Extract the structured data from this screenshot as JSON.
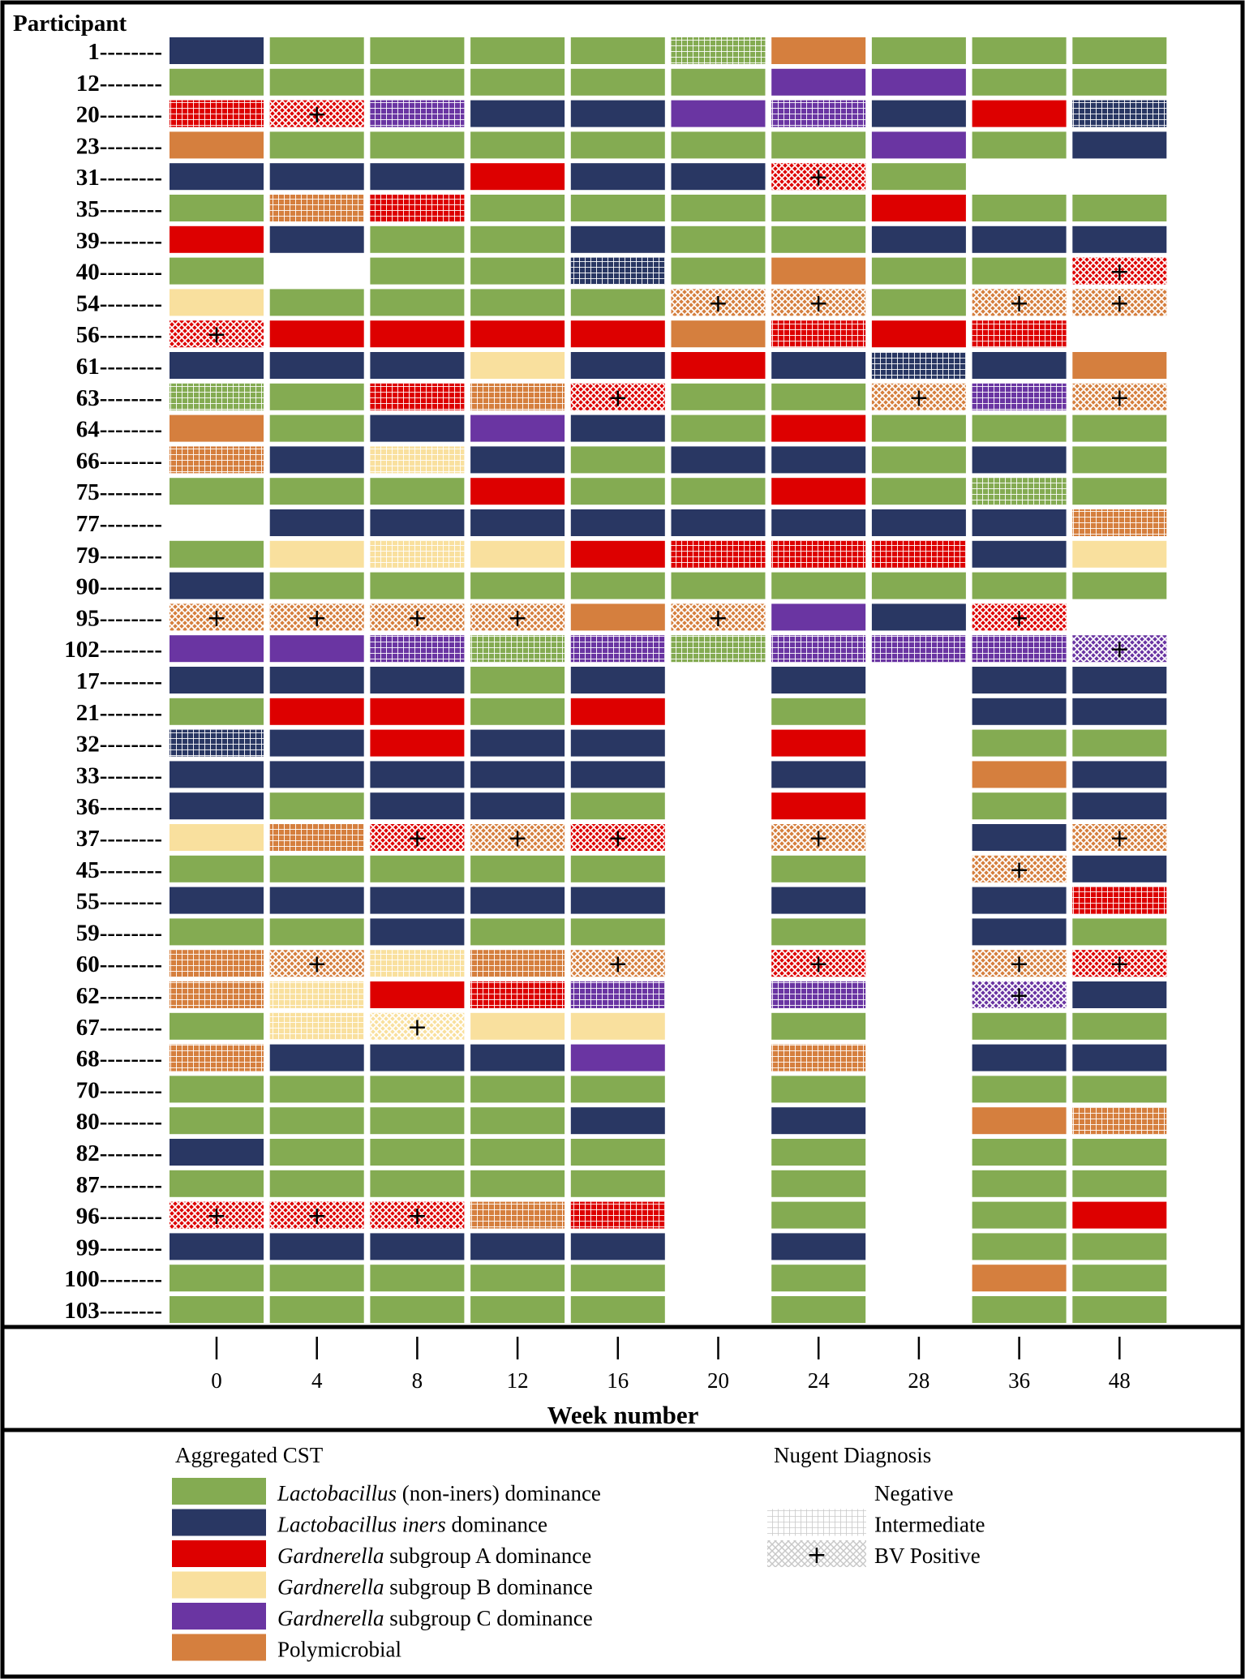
{
  "chart_data": {
    "type": "heatmap",
    "row_header": "Participant",
    "xlabel": "Week number",
    "weeks": [
      "0",
      "4",
      "8",
      "12",
      "16",
      "20",
      "24",
      "28",
      "36",
      "48"
    ],
    "colors": {
      "G": "#84ab52",
      "N": "#293763",
      "R": "#dd0000",
      "Y": "#f9e09e",
      "P": "#6a35a2",
      "O": "#d57f3e"
    },
    "rows": [
      {
        "id": "1",
        "cells": [
          "N",
          "G",
          "G",
          "G",
          "G",
          "Gi",
          "O",
          "G",
          "G",
          "G"
        ]
      },
      {
        "id": "12",
        "cells": [
          "G",
          "G",
          "G",
          "G",
          "G",
          "G",
          "P",
          "P",
          "G",
          "G"
        ]
      },
      {
        "id": "20",
        "cells": [
          "Ri",
          "Rb",
          "Pi",
          "N",
          "N",
          "P",
          "Pi",
          "N",
          "R",
          "Ni"
        ]
      },
      {
        "id": "23",
        "cells": [
          "O",
          "G",
          "G",
          "G",
          "G",
          "G",
          "G",
          "P",
          "G",
          "N"
        ]
      },
      {
        "id": "31",
        "cells": [
          "N",
          "N",
          "N",
          "R",
          "N",
          "N",
          "Rb",
          "G",
          "",
          ""
        ]
      },
      {
        "id": "35",
        "cells": [
          "G",
          "Oi",
          "Ri",
          "G",
          "G",
          "G",
          "G",
          "R",
          "G",
          "G"
        ]
      },
      {
        "id": "39",
        "cells": [
          "R",
          "N",
          "G",
          "G",
          "N",
          "G",
          "G",
          "N",
          "N",
          "N"
        ]
      },
      {
        "id": "40",
        "cells": [
          "G",
          "",
          "G",
          "G",
          "Ni",
          "G",
          "O",
          "G",
          "G",
          "Rb"
        ]
      },
      {
        "id": "54",
        "cells": [
          "Y",
          "G",
          "G",
          "G",
          "G",
          "Ob",
          "Ob",
          "G",
          "Ob",
          "Ob"
        ]
      },
      {
        "id": "56",
        "cells": [
          "Rb",
          "R",
          "R",
          "R",
          "R",
          "O",
          "Ri",
          "R",
          "Ri",
          ""
        ]
      },
      {
        "id": "61",
        "cells": [
          "N",
          "N",
          "N",
          "Y",
          "N",
          "R",
          "N",
          "Ni",
          "N",
          "O"
        ]
      },
      {
        "id": "63",
        "cells": [
          "Gi",
          "G",
          "Ri",
          "Oi",
          "Rb",
          "G",
          "G",
          "Ob",
          "Pi",
          "Ob"
        ]
      },
      {
        "id": "64",
        "cells": [
          "O",
          "G",
          "N",
          "P",
          "N",
          "G",
          "R",
          "G",
          "G",
          "G"
        ]
      },
      {
        "id": "66",
        "cells": [
          "Oi",
          "N",
          "Yi",
          "N",
          "G",
          "N",
          "N",
          "G",
          "N",
          "G"
        ]
      },
      {
        "id": "75",
        "cells": [
          "G",
          "G",
          "G",
          "R",
          "G",
          "G",
          "R",
          "G",
          "Gi",
          "G"
        ]
      },
      {
        "id": "77",
        "cells": [
          "",
          "N",
          "N",
          "N",
          "N",
          "N",
          "N",
          "N",
          "N",
          "Oi"
        ]
      },
      {
        "id": "79",
        "cells": [
          "G",
          "Y",
          "Yi",
          "Y",
          "R",
          "Ri",
          "Ri",
          "Ri",
          "N",
          "Y"
        ]
      },
      {
        "id": "90",
        "cells": [
          "N",
          "G",
          "G",
          "G",
          "G",
          "G",
          "G",
          "G",
          "G",
          "G"
        ]
      },
      {
        "id": "95",
        "cells": [
          "Ob",
          "Ob",
          "Ob",
          "Ob",
          "O",
          "Ob",
          "P",
          "N",
          "Rb",
          ""
        ]
      },
      {
        "id": "102",
        "cells": [
          "P",
          "P",
          "Pi",
          "Gi",
          "Pi",
          "Gi",
          "Pi",
          "Pi",
          "Pi",
          "Pb"
        ]
      },
      {
        "id": "17",
        "cells": [
          "N",
          "N",
          "N",
          "G",
          "N",
          "",
          "N",
          "",
          "N",
          "N"
        ]
      },
      {
        "id": "21",
        "cells": [
          "G",
          "R",
          "R",
          "G",
          "R",
          "",
          "G",
          "",
          "N",
          "N"
        ]
      },
      {
        "id": "32",
        "cells": [
          "Ni",
          "N",
          "R",
          "N",
          "N",
          "",
          "R",
          "",
          "G",
          "G"
        ]
      },
      {
        "id": "33",
        "cells": [
          "N",
          "N",
          "N",
          "N",
          "N",
          "",
          "N",
          "",
          "O",
          "N"
        ]
      },
      {
        "id": "36",
        "cells": [
          "N",
          "G",
          "N",
          "N",
          "G",
          "",
          "R",
          "",
          "G",
          "N"
        ]
      },
      {
        "id": "37",
        "cells": [
          "Y",
          "Oi",
          "Rb",
          "Ob",
          "Rb",
          "",
          "Ob",
          "",
          "N",
          "Ob"
        ]
      },
      {
        "id": "45",
        "cells": [
          "G",
          "G",
          "G",
          "G",
          "G",
          "",
          "G",
          "",
          "Ob",
          "N"
        ]
      },
      {
        "id": "55",
        "cells": [
          "N",
          "N",
          "N",
          "N",
          "N",
          "",
          "N",
          "",
          "N",
          "Ri"
        ]
      },
      {
        "id": "59",
        "cells": [
          "G",
          "G",
          "N",
          "G",
          "G",
          "",
          "G",
          "",
          "N",
          "G"
        ]
      },
      {
        "id": "60",
        "cells": [
          "Oi",
          "Ob",
          "Yi",
          "Oi",
          "Ob",
          "",
          "Rb",
          "",
          "Ob",
          "Rb"
        ]
      },
      {
        "id": "62",
        "cells": [
          "Oi",
          "Yi",
          "R",
          "Ri",
          "Pi",
          "",
          "Pi",
          "",
          "Pb",
          "N"
        ]
      },
      {
        "id": "67",
        "cells": [
          "G",
          "Yi",
          "Yb",
          "Y",
          "Y",
          "",
          "G",
          "",
          "G",
          "G"
        ]
      },
      {
        "id": "68",
        "cells": [
          "Oi",
          "N",
          "N",
          "N",
          "P",
          "",
          "Oi",
          "",
          "N",
          "N"
        ]
      },
      {
        "id": "70",
        "cells": [
          "G",
          "G",
          "G",
          "G",
          "G",
          "",
          "G",
          "",
          "G",
          "G"
        ]
      },
      {
        "id": "80",
        "cells": [
          "G",
          "G",
          "G",
          "G",
          "N",
          "",
          "N",
          "",
          "O",
          "Oi"
        ]
      },
      {
        "id": "82",
        "cells": [
          "N",
          "G",
          "G",
          "G",
          "G",
          "",
          "G",
          "",
          "G",
          "G"
        ]
      },
      {
        "id": "87",
        "cells": [
          "G",
          "G",
          "G",
          "G",
          "G",
          "",
          "G",
          "",
          "G",
          "G"
        ]
      },
      {
        "id": "96",
        "cells": [
          "Rb",
          "Rb",
          "Rb",
          "Oi",
          "Ri",
          "",
          "G",
          "",
          "G",
          "R"
        ]
      },
      {
        "id": "99",
        "cells": [
          "N",
          "N",
          "N",
          "N",
          "N",
          "",
          "N",
          "",
          "G",
          "G"
        ]
      },
      {
        "id": "100",
        "cells": [
          "G",
          "G",
          "G",
          "G",
          "G",
          "",
          "G",
          "",
          "O",
          "G"
        ]
      },
      {
        "id": "103",
        "cells": [
          "G",
          "G",
          "G",
          "G",
          "G",
          "",
          "G",
          "",
          "G",
          "G"
        ]
      }
    ],
    "legend": {
      "cst_title": "Aggregated CST",
      "cst_items": [
        {
          "code": "G",
          "italic": "Lactobacillus",
          "text": " (non-iners) dominance"
        },
        {
          "code": "N",
          "italic": "Lactobacillus iners",
          "text": " dominance"
        },
        {
          "code": "R",
          "italic": "Gardnerella",
          "text": " subgroup A dominance"
        },
        {
          "code": "Y",
          "italic": "Gardnerella",
          "text": " subgroup B dominance"
        },
        {
          "code": "P",
          "italic": "Gardnerella",
          "text": " subgroup C dominance"
        },
        {
          "code": "O",
          "italic": "",
          "text": "Polymicrobial"
        }
      ],
      "nugent_title": "Nugent Diagnosis",
      "nugent_items": [
        {
          "pattern": "none",
          "label": "Negative"
        },
        {
          "pattern": "grid",
          "label": "Intermediate"
        },
        {
          "pattern": "cross",
          "label": "BV Positive"
        }
      ]
    }
  }
}
